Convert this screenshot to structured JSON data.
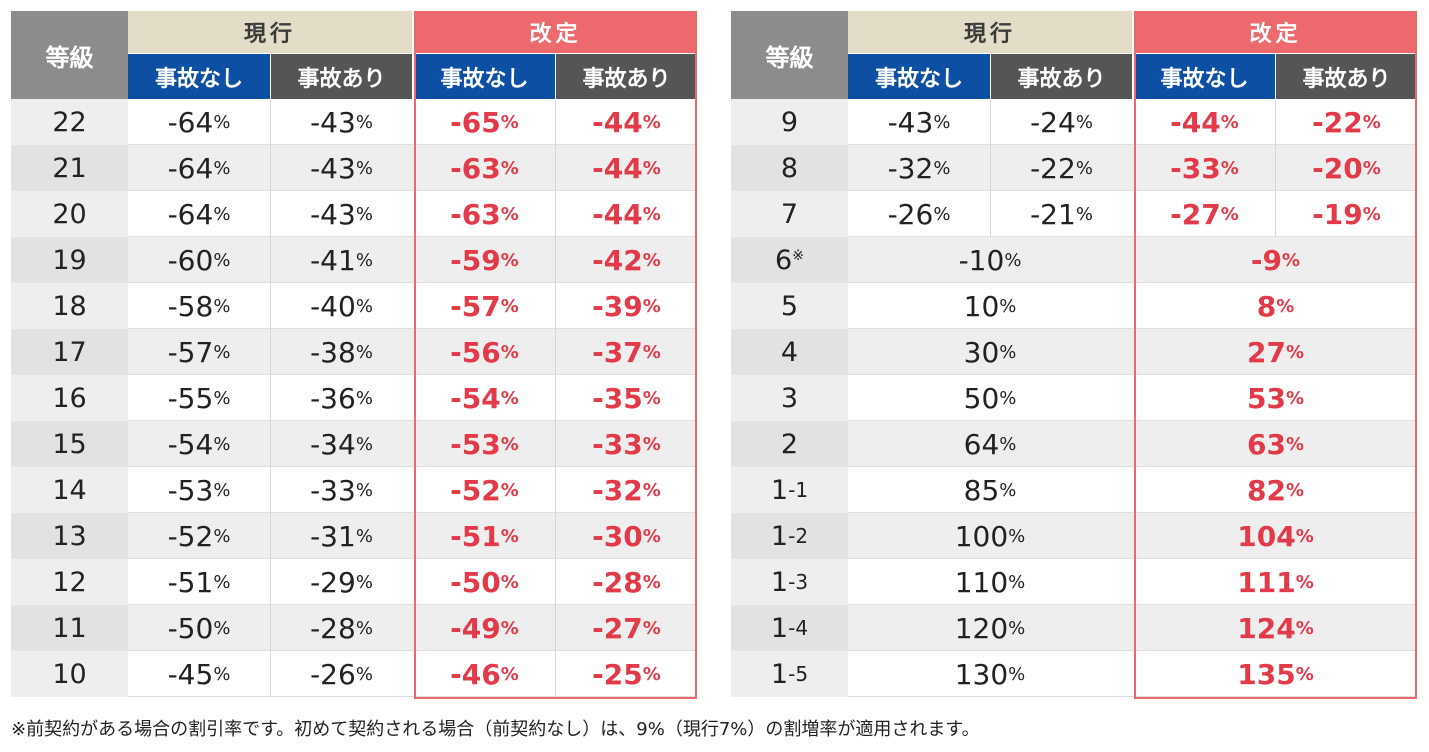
{
  "headers": {
    "grade": "等級",
    "current": "現行",
    "revised": "改定",
    "no_accident": "事故なし",
    "with_accident": "事故あり"
  },
  "left_rows": [
    {
      "grade": "22",
      "cur_no": "-64",
      "cur_yes": "-43",
      "new_no": "-65",
      "new_yes": "-44"
    },
    {
      "grade": "21",
      "cur_no": "-64",
      "cur_yes": "-43",
      "new_no": "-63",
      "new_yes": "-44"
    },
    {
      "grade": "20",
      "cur_no": "-64",
      "cur_yes": "-43",
      "new_no": "-63",
      "new_yes": "-44"
    },
    {
      "grade": "19",
      "cur_no": "-60",
      "cur_yes": "-41",
      "new_no": "-59",
      "new_yes": "-42"
    },
    {
      "grade": "18",
      "cur_no": "-58",
      "cur_yes": "-40",
      "new_no": "-57",
      "new_yes": "-39"
    },
    {
      "grade": "17",
      "cur_no": "-57",
      "cur_yes": "-38",
      "new_no": "-56",
      "new_yes": "-37"
    },
    {
      "grade": "16",
      "cur_no": "-55",
      "cur_yes": "-36",
      "new_no": "-54",
      "new_yes": "-35"
    },
    {
      "grade": "15",
      "cur_no": "-54",
      "cur_yes": "-34",
      "new_no": "-53",
      "new_yes": "-33"
    },
    {
      "grade": "14",
      "cur_no": "-53",
      "cur_yes": "-33",
      "new_no": "-52",
      "new_yes": "-32"
    },
    {
      "grade": "13",
      "cur_no": "-52",
      "cur_yes": "-31",
      "new_no": "-51",
      "new_yes": "-30"
    },
    {
      "grade": "12",
      "cur_no": "-51",
      "cur_yes": "-29",
      "new_no": "-50",
      "new_yes": "-28"
    },
    {
      "grade": "11",
      "cur_no": "-50",
      "cur_yes": "-28",
      "new_no": "-49",
      "new_yes": "-27"
    },
    {
      "grade": "10",
      "cur_no": "-45",
      "cur_yes": "-26",
      "new_no": "-46",
      "new_yes": "-25"
    }
  ],
  "right_rows": [
    {
      "grade": "9",
      "cur_no": "-43",
      "cur_yes": "-24",
      "new_no": "-44",
      "new_yes": "-22"
    },
    {
      "grade": "8",
      "cur_no": "-32",
      "cur_yes": "-22",
      "new_no": "-33",
      "new_yes": "-20"
    },
    {
      "grade": "7",
      "cur_no": "-26",
      "cur_yes": "-21",
      "new_no": "-27",
      "new_yes": "-19"
    },
    {
      "grade": "6",
      "grade_sup": "※",
      "cur": "-10",
      "new": "-9"
    },
    {
      "grade": "5",
      "cur": "10",
      "new": "8"
    },
    {
      "grade": "4",
      "cur": "30",
      "new": "27"
    },
    {
      "grade": "3",
      "cur": "50",
      "new": "53"
    },
    {
      "grade": "2",
      "cur": "64",
      "new": "63"
    },
    {
      "grade": "1",
      "grade_sub": "-1",
      "cur": "85",
      "new": "82"
    },
    {
      "grade": "1",
      "grade_sub": "-2",
      "cur": "100",
      "new": "104"
    },
    {
      "grade": "1",
      "grade_sub": "-3",
      "cur": "110",
      "new": "111"
    },
    {
      "grade": "1",
      "grade_sub": "-4",
      "cur": "120",
      "new": "124"
    },
    {
      "grade": "1",
      "grade_sub": "-5",
      "cur": "130",
      "new": "135"
    }
  ],
  "percent_sign": "%",
  "footnote": "※前契約がある場合の割引率です。初めて契約される場合（前契約なし）は、9%（現行7%）の割増率が適用されます。",
  "colors": {
    "grade_header": "#8c8c8c",
    "current_header": "#e3dcc6",
    "revised_header": "#ec6a6e",
    "no_accident_header": "#0d4fa3",
    "with_accident_header": "#555555",
    "revised_text": "#e23a49"
  }
}
